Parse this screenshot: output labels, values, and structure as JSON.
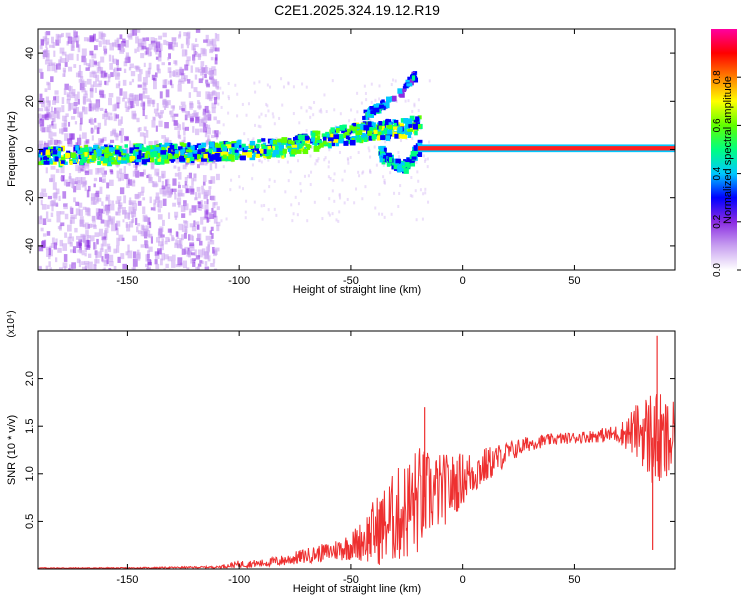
{
  "title": "C2E1.2025.324.19.12.R19",
  "chart_data": [
    {
      "type": "heatmap",
      "name": "spectrogram",
      "xlabel": "Height of straight line (km)",
      "ylabel": "Frequency (Hz)",
      "xlim": [
        -190,
        95
      ],
      "ylim": [
        -50,
        50
      ],
      "xticks": [
        -150,
        -100,
        -50,
        0,
        50
      ],
      "yticks": [
        -40,
        -20,
        0,
        20,
        40
      ],
      "colorbar": {
        "label": "Normalized spectral amplitude",
        "range": [
          0,
          1
        ],
        "ticks": [
          0.0,
          0.2,
          0.4,
          0.6,
          0.8
        ],
        "colormap": [
          "#ffffff",
          "#c8a0f0",
          "#8a2be2",
          "#0000ff",
          "#00c8ff",
          "#00ff80",
          "#60ff00",
          "#ffff00",
          "#ff8000",
          "#ff0000",
          "#ff00a0"
        ]
      },
      "features": [
        {
          "desc": "broadband noise",
          "x_range": [
            -190,
            -110
          ],
          "f_range": [
            -50,
            50
          ]
        },
        {
          "desc": "main trace",
          "x": [
            -190,
            -150,
            -110,
            -80,
            -60,
            -40,
            -25,
            -20
          ],
          "f": [
            -2,
            -1,
            0,
            2,
            6,
            9,
            10,
            12
          ]
        },
        {
          "desc": "rising branch",
          "x": [
            -45,
            -35,
            -28,
            -22
          ],
          "f": [
            15,
            20,
            25,
            32
          ]
        },
        {
          "desc": "dip branch",
          "x": [
            -38,
            -32,
            -28,
            -24,
            -20
          ],
          "f": [
            0,
            -5,
            -7,
            -3,
            2
          ]
        },
        {
          "desc": "steady tone",
          "x_range": [
            -20,
            95
          ],
          "f": 0.5
        }
      ]
    },
    {
      "type": "line",
      "name": "snr",
      "xlabel": "Height of straight line (km)",
      "ylabel": "SNR (10 * v/v)",
      "scale_label": "(x10⁴)",
      "xlim": [
        -190,
        95
      ],
      "ylim": [
        0,
        2.5
      ],
      "xticks": [
        -150,
        -100,
        -50,
        0,
        50
      ],
      "yticks": [
        0.5,
        1.0,
        1.5,
        2.0
      ],
      "series_color": "#ee3030",
      "envelope": {
        "x": [
          -190,
          -150,
          -110,
          -100,
          -90,
          -80,
          -70,
          -60,
          -50,
          -45,
          -40,
          -35,
          -30,
          -25,
          -20,
          -15,
          -10,
          -5,
          0,
          10,
          20,
          30,
          40,
          50,
          60,
          70,
          80,
          85,
          90,
          95
        ],
        "mean": [
          0.01,
          0.01,
          0.02,
          0.05,
          0.06,
          0.09,
          0.14,
          0.18,
          0.24,
          0.3,
          0.38,
          0.46,
          0.55,
          0.62,
          0.72,
          0.78,
          0.82,
          0.86,
          0.95,
          1.08,
          1.22,
          1.32,
          1.36,
          1.38,
          1.4,
          1.42,
          1.45,
          1.38,
          1.3,
          1.35
        ],
        "amp": [
          0.005,
          0.006,
          0.01,
          0.04,
          0.04,
          0.06,
          0.08,
          0.1,
          0.15,
          0.22,
          0.35,
          0.42,
          0.5,
          0.55,
          0.6,
          0.45,
          0.4,
          0.35,
          0.28,
          0.2,
          0.12,
          0.08,
          0.06,
          0.06,
          0.07,
          0.1,
          0.35,
          0.55,
          0.5,
          0.4
        ]
      },
      "peaks": [
        {
          "x": -17,
          "y": 1.7
        },
        {
          "x": 87,
          "y": 2.45
        },
        {
          "x": 85,
          "y": 0.2
        }
      ]
    }
  ]
}
